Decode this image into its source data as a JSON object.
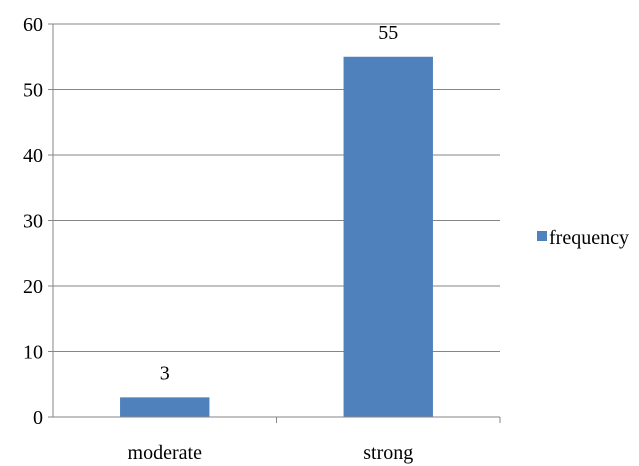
{
  "chart_data": {
    "type": "bar",
    "categories": [
      "moderate",
      "strong"
    ],
    "series": [
      {
        "name": "frequency",
        "values": [
          3,
          55
        ],
        "color": "#4F81BD"
      }
    ],
    "data_labels": [
      "3",
      "55"
    ],
    "ylim": [
      0,
      60
    ],
    "yticks": [
      0,
      10,
      20,
      30,
      40,
      50,
      60
    ],
    "grid": true,
    "legend": "right"
  }
}
